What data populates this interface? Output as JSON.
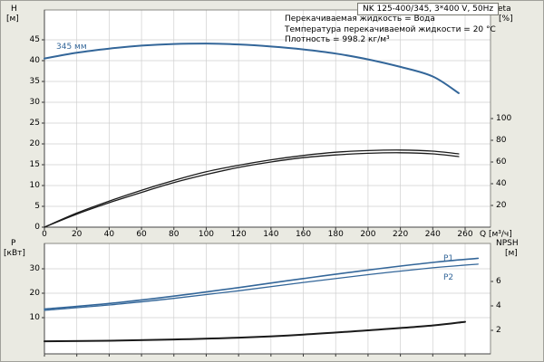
{
  "info_lines": [
    "Перекачиваемая жидкость = Вода",
    "Температура перекачиваемой жидкости = 20 °C",
    "Плотность = 998.2 кг/м³"
  ],
  "colors": {
    "curve_blue": "#336699",
    "curve_black": "#1a1a1a",
    "grid": "#cfcfcf",
    "background": "#eaeae2"
  },
  "chart_data": [
    {
      "type": "line",
      "title": "NK 125-400/345, 3*400 V, 50Hz",
      "axis_labels": {
        "left": "H",
        "left_unit": "[м]",
        "right": "eta",
        "right_unit": "[%]",
        "x": "Q [м³/ч]"
      },
      "xlim": [
        0,
        276
      ],
      "ylim_left": [
        0,
        52
      ],
      "grid": true,
      "legend": "none",
      "x_ticks": [
        0,
        20,
        40,
        60,
        80,
        100,
        120,
        140,
        160,
        180,
        200,
        220,
        240,
        260
      ],
      "y_ticks_left": [
        0,
        5,
        10,
        15,
        20,
        25,
        30,
        35,
        40,
        45
      ],
      "y_ticks_right": [
        20,
        40,
        60,
        80,
        100
      ],
      "series": [
        {
          "name": "head-345mm",
          "label": "345 мм",
          "axis": "H",
          "color": "#336699",
          "width": 2,
          "x": [
            0,
            20,
            40,
            60,
            80,
            100,
            120,
            140,
            160,
            180,
            200,
            220,
            240,
            256
          ],
          "values": [
            40.5,
            41.9,
            42.9,
            43.6,
            44.0,
            44.1,
            43.9,
            43.4,
            42.7,
            41.7,
            40.3,
            38.5,
            36.2,
            32.2
          ]
        },
        {
          "name": "eta1",
          "label": "",
          "axis": "eta",
          "color": "#1a1a1a",
          "width": 1.3,
          "x": [
            0,
            20,
            40,
            60,
            80,
            100,
            120,
            140,
            160,
            180,
            200,
            220,
            240,
            256
          ],
          "values": [
            0,
            13,
            24,
            34,
            43,
            51,
            57,
            62,
            66,
            69,
            70.5,
            71,
            70,
            67.5
          ]
        },
        {
          "name": "eta2",
          "label": "",
          "axis": "eta",
          "color": "#1a1a1a",
          "width": 1.3,
          "x": [
            0,
            20,
            40,
            60,
            80,
            100,
            120,
            140,
            160,
            180,
            200,
            220,
            240,
            256
          ],
          "values": [
            0,
            12,
            22.5,
            32,
            41,
            48.5,
            55,
            60,
            64,
            66.5,
            68,
            68.5,
            67.5,
            65
          ]
        }
      ]
    },
    {
      "type": "line",
      "title": "",
      "axis_labels": {
        "left": "P",
        "left_unit": "[кВт]",
        "right": "NPSH",
        "right_unit": "[м]",
        "x": ""
      },
      "xlim": [
        0,
        276
      ],
      "ylim_left": [
        0,
        40
      ],
      "grid": true,
      "legend": "none",
      "x_ticks": [
        0,
        20,
        40,
        60,
        80,
        100,
        120,
        140,
        160,
        180,
        200,
        220,
        240,
        260
      ],
      "y_ticks_left": [
        10,
        20,
        30
      ],
      "y_ticks_right": [
        2,
        4,
        6
      ],
      "series": [
        {
          "name": "P1",
          "label": "P1",
          "axis": "P",
          "color": "#336699",
          "width": 1.6,
          "x": [
            0,
            40,
            80,
            120,
            160,
            200,
            240,
            268
          ],
          "values": [
            13.5,
            15.8,
            18.8,
            22.3,
            26.0,
            29.5,
            32.6,
            34.3
          ]
        },
        {
          "name": "P2",
          "label": "P2",
          "axis": "P",
          "color": "#336699",
          "width": 1.3,
          "x": [
            0,
            40,
            80,
            120,
            160,
            200,
            240,
            268
          ],
          "values": [
            13.0,
            15.2,
            17.9,
            21.0,
            24.4,
            27.6,
            30.4,
            31.9
          ]
        },
        {
          "name": "NPSH",
          "label": "",
          "axis": "NPSH",
          "color": "#1a1a1a",
          "width": 2,
          "x": [
            0,
            40,
            80,
            120,
            160,
            200,
            240,
            260
          ],
          "values": [
            1.1,
            1.15,
            1.25,
            1.4,
            1.65,
            2.0,
            2.4,
            2.7
          ]
        }
      ]
    }
  ]
}
